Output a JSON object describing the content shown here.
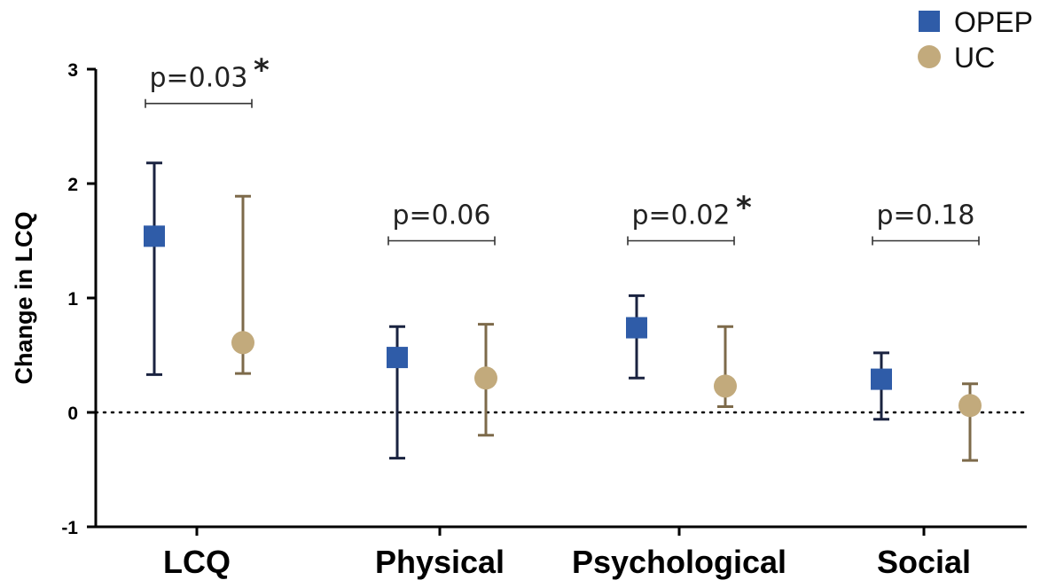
{
  "chart_data": {
    "type": "scatter",
    "ylabel": "Change in LCQ",
    "ylim": [
      -1,
      3
    ],
    "yticks": [
      -1,
      0,
      1,
      2,
      3
    ],
    "categories": [
      "LCQ",
      "Physical",
      "Psychological",
      "Social"
    ],
    "reference_line": 0,
    "legend_position": "top-right",
    "series": [
      {
        "name": "OPEP",
        "marker": "square",
        "color": "#2f5ca8",
        "errorbar_color": "#1a2340",
        "values": [
          1.54,
          0.48,
          0.74,
          0.29
        ],
        "lower": [
          0.33,
          -0.4,
          0.3,
          -0.06
        ],
        "upper": [
          2.18,
          0.75,
          1.02,
          0.52
        ]
      },
      {
        "name": "UC",
        "marker": "circle",
        "color": "#c2aa7c",
        "errorbar_color": "#7d6a4a",
        "values": [
          0.61,
          0.3,
          0.23,
          0.06
        ],
        "lower": [
          0.34,
          -0.2,
          0.05,
          -0.42
        ],
        "upper": [
          1.89,
          0.77,
          0.75,
          0.25
        ]
      }
    ],
    "comparisons": [
      {
        "category": "LCQ",
        "text": "p=0.03",
        "star": "*",
        "bracket_y": 2.7
      },
      {
        "category": "Physical",
        "text": "p=0.06",
        "star": "",
        "bracket_y": 1.5
      },
      {
        "category": "Psychological",
        "text": "p=0.02",
        "star": "*",
        "bracket_y": 1.5
      },
      {
        "category": "Social",
        "text": "p=0.18",
        "star": "",
        "bracket_y": 1.5
      }
    ]
  }
}
